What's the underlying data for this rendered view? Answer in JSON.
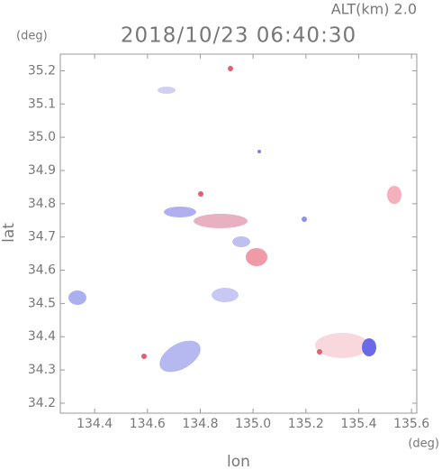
{
  "map": {
    "altitude_label": "ALT(km) 2.0",
    "title": "2018/10/23 06:40:30",
    "y_unit": "(deg)",
    "x_unit": "(deg)",
    "y_label": "lat",
    "x_label": "lon",
    "xlim": [
      134.27,
      135.62
    ],
    "ylim": [
      34.17,
      35.25
    ],
    "xticks": [
      134.4,
      134.6,
      134.8,
      {
        "value": 135,
        "label": "135.0"
      },
      135.2,
      135.4,
      135.6
    ],
    "yticks": [
      34.2,
      34.3,
      34.4,
      34.5,
      34.6,
      34.7,
      34.8,
      34.9,
      {
        "value": 35,
        "label": "35.0"
      },
      35.1,
      35.2
    ]
  }
}
